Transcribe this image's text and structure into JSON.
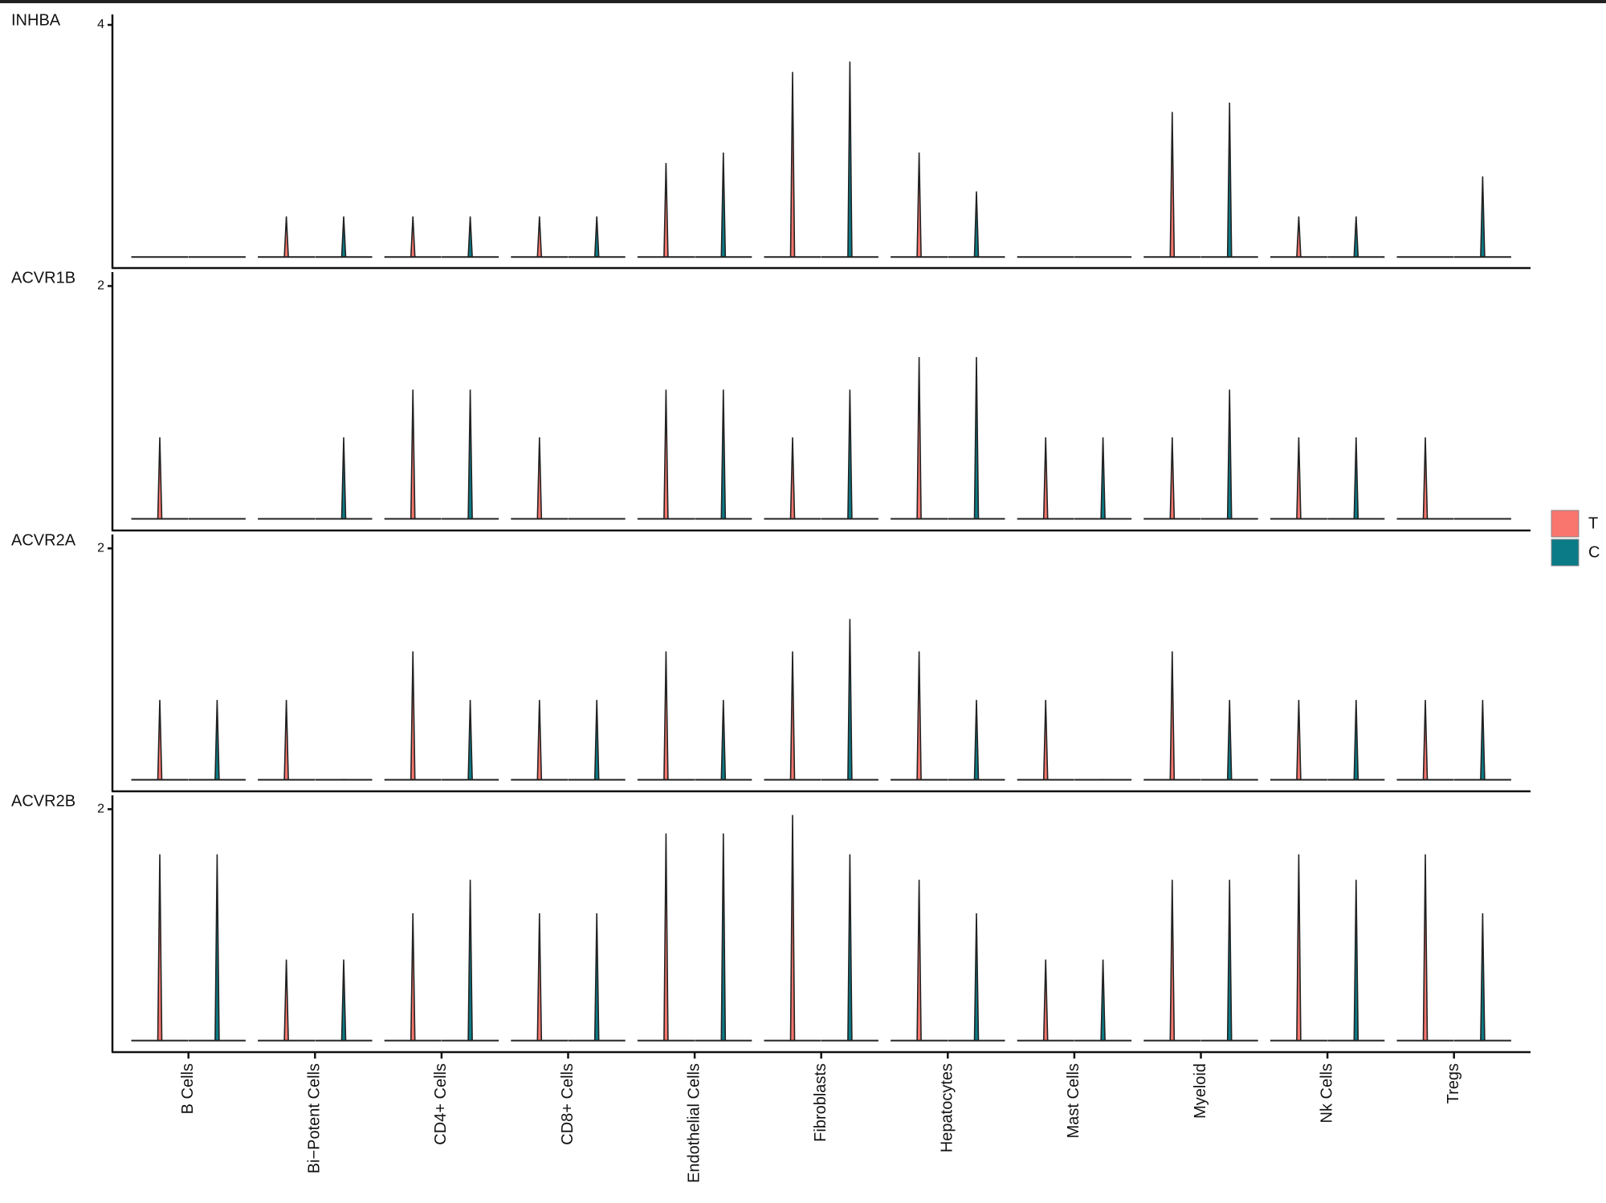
{
  "chart_data": [
    {
      "type": "violin",
      "title": "INHBA",
      "ylim": [
        -0.19,
        4.18
      ],
      "yticks": [
        4
      ],
      "series": [
        {
          "name": "T",
          "color": "#F8766D",
          "values": [
            0,
            0.7,
            0.7,
            0.7,
            1.62,
            3.19,
            1.8,
            0,
            2.5,
            0.7,
            0
          ]
        },
        {
          "name": "C",
          "color": "#0B7B87",
          "values": [
            0,
            0.7,
            0.7,
            0.7,
            1.8,
            3.37,
            1.13,
            0,
            2.66,
            0.7,
            1.39
          ]
        }
      ]
    },
    {
      "type": "violin",
      "title": "ACVR1B",
      "ylim": [
        -0.1,
        2.12
      ],
      "yticks": [
        2
      ],
      "series": [
        {
          "name": "T",
          "color": "#F8766D",
          "values": [
            0.7,
            0,
            1.11,
            0.7,
            1.11,
            0.7,
            1.39,
            0.7,
            0.7,
            0.7,
            0.7
          ]
        },
        {
          "name": "C",
          "color": "#0B7B87",
          "values": [
            0,
            0.7,
            1.11,
            0,
            1.11,
            1.11,
            1.39,
            0.7,
            1.11,
            0.7,
            0
          ]
        }
      ]
    },
    {
      "type": "violin",
      "title": "ACVR2A",
      "ylim": [
        -0.1,
        2.12
      ],
      "yticks": [
        2
      ],
      "series": [
        {
          "name": "T",
          "color": "#F8766D",
          "values": [
            0.69,
            0.69,
            1.11,
            0.69,
            1.11,
            1.11,
            1.11,
            0.69,
            1.11,
            0.69,
            0.69
          ]
        },
        {
          "name": "C",
          "color": "#0B7B87",
          "values": [
            0.69,
            0,
            0.69,
            0.69,
            0.69,
            1.39,
            0.69,
            0,
            0.69,
            0.69,
            0.69
          ]
        }
      ]
    },
    {
      "type": "violin",
      "title": "ACVR2B",
      "ylim": [
        -0.1,
        2.12
      ],
      "yticks": [
        2
      ],
      "categories": [
        "B Cells",
        "Bi−Potent Cells",
        "CD4+ Cells",
        "CD8+ Cells",
        "Endothelial Cells",
        "Fibroblasts",
        "Hepatocytes",
        "Mast Cells",
        "Myeloid",
        "Nk Cells",
        "Tregs"
      ],
      "series": [
        {
          "name": "T",
          "color": "#F8766D",
          "values": [
            1.61,
            0.7,
            1.1,
            1.1,
            1.79,
            1.95,
            1.39,
            0.7,
            1.39,
            1.61,
            1.61
          ]
        },
        {
          "name": "C",
          "color": "#0B7B87",
          "values": [
            1.61,
            0.7,
            1.39,
            1.1,
            1.79,
            1.61,
            1.1,
            0.7,
            1.39,
            1.39,
            1.1
          ]
        }
      ]
    }
  ]
}
